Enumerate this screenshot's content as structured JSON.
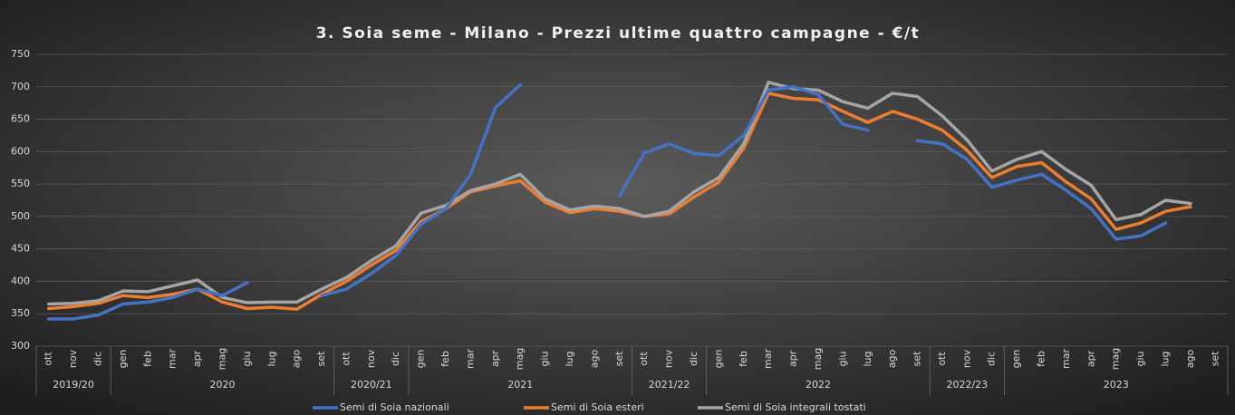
{
  "chart_data": {
    "type": "line",
    "title": "3. Soia seme - Milano - Prezzi ultime quattro campagne - €/t",
    "groups": [
      {
        "label": "2019/20",
        "categories": [
          "ott",
          "nov",
          "dic"
        ]
      },
      {
        "label": "2020",
        "categories": [
          "gen",
          "feb",
          "mar",
          "apr",
          "mag",
          "giu",
          "lug",
          "ago",
          "set"
        ]
      },
      {
        "label": "2020/21",
        "categories": [
          "ott",
          "nov",
          "dic"
        ]
      },
      {
        "label": "2021",
        "categories": [
          "gen",
          "feb",
          "mar",
          "apr",
          "mag",
          "giu",
          "lug",
          "ago",
          "set"
        ]
      },
      {
        "label": "2021/22",
        "categories": [
          "ott",
          "nov",
          "dic"
        ]
      },
      {
        "label": "2022",
        "categories": [
          "gen",
          "feb",
          "mar",
          "apr",
          "mag",
          "giu",
          "lug",
          "ago",
          "set"
        ]
      },
      {
        "label": "2022/23",
        "categories": [
          "ott",
          "nov",
          "dic"
        ]
      },
      {
        "label": "2023",
        "categories": [
          "gen",
          "feb",
          "mar",
          "apr",
          "mag",
          "giu",
          "lug",
          "ago",
          "set"
        ]
      }
    ],
    "series": [
      {
        "name": "Semi di Soia nazionali",
        "color": "#4472c4",
        "values": [
          342,
          342,
          348,
          365,
          368,
          375,
          388,
          378,
          398,
          null,
          null,
          378,
          388,
          412,
          440,
          488,
          512,
          565,
          668,
          703,
          null,
          null,
          null,
          532,
          598,
          612,
          597,
          594,
          625,
          695,
          700,
          688,
          642,
          633,
          null,
          617,
          612,
          588,
          545,
          556,
          565,
          540,
          512,
          465,
          470,
          490,
          null,
          null
        ]
      },
      {
        "name": "Semi di Soia esteri",
        "color": "#ed7d31",
        "values": [
          358,
          361,
          366,
          378,
          375,
          380,
          388,
          368,
          358,
          360,
          357,
          380,
          400,
          425,
          448,
          492,
          512,
          538,
          547,
          555,
          522,
          506,
          512,
          508,
          500,
          504,
          530,
          553,
          605,
          690,
          682,
          680,
          662,
          645,
          662,
          650,
          633,
          602,
          560,
          577,
          583,
          553,
          527,
          480,
          490,
          508,
          515,
          null
        ]
      },
      {
        "name": "Semi di Soia integrali tostati",
        "color": "#a5a5a5",
        "values": [
          365,
          366,
          370,
          385,
          384,
          393,
          402,
          375,
          367,
          368,
          368,
          388,
          406,
          432,
          455,
          505,
          517,
          540,
          550,
          565,
          527,
          510,
          516,
          512,
          500,
          508,
          538,
          560,
          612,
          707,
          697,
          695,
          677,
          667,
          690,
          685,
          655,
          618,
          570,
          588,
          600,
          572,
          548,
          495,
          503,
          525,
          520,
          null
        ]
      }
    ],
    "ylim": [
      300,
      750
    ],
    "yticks": [
      300,
      350,
      400,
      450,
      500,
      550,
      600,
      650,
      700,
      750
    ],
    "grid": true
  }
}
